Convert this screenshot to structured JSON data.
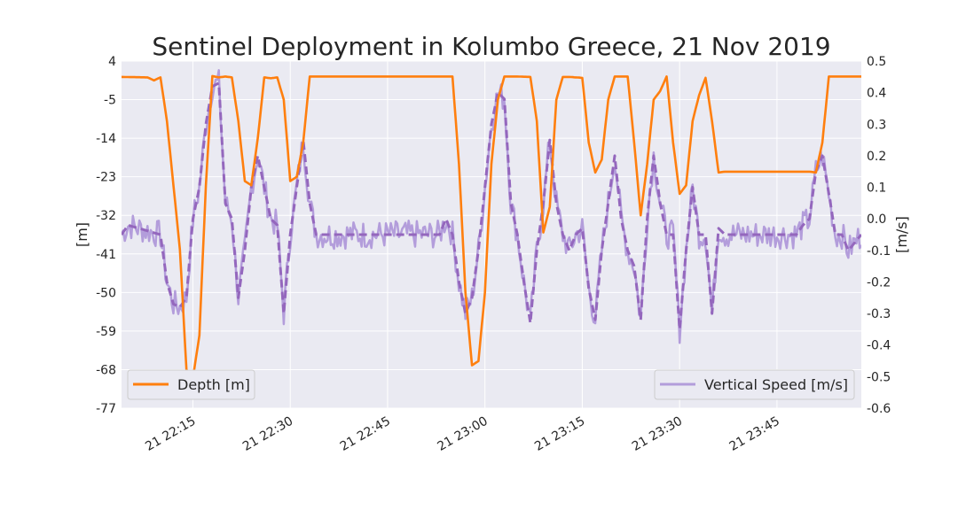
{
  "chart_data": {
    "type": "line",
    "title": "Sentinel Deployment in Kolumbo Greece, 21 Nov 2019",
    "grid": true,
    "x_ticks": [
      "21 22:15",
      "21 22:30",
      "21 22:45",
      "21 23:00",
      "21 23:15",
      "21 23:30",
      "21 23:45"
    ],
    "x_range": [
      "2019-11-21 22:04",
      "2019-11-21 23:58"
    ],
    "left_axis": {
      "label": "[m]",
      "ylim": [
        -77,
        4
      ],
      "ticks": [
        "4",
        "-5",
        "-14",
        "-23",
        "-32",
        "-41",
        "-50",
        "-59",
        "-68",
        "-77"
      ]
    },
    "right_axis": {
      "label": "[m/s]",
      "ylim": [
        -0.6,
        0.5
      ],
      "ticks": [
        "0.5",
        "0.4",
        "0.3",
        "0.2",
        "0.1",
        "0.0",
        "-0.1",
        "-0.2",
        "-0.3",
        "-0.4",
        "-0.5",
        "-0.6"
      ]
    },
    "series": [
      {
        "name": "Depth [m]",
        "axis": "left",
        "color": "#ff7f0e",
        "style": "solid",
        "x": [
          "22:04",
          "22:08",
          "22:09",
          "22:10",
          "22:11",
          "22:13",
          "22:14",
          "22:15",
          "22:16",
          "22:17",
          "22:18",
          "22:19",
          "22:20",
          "22:21",
          "22:22",
          "22:23",
          "22:24",
          "22:25",
          "22:26",
          "22:27",
          "22:28",
          "22:29",
          "22:30",
          "22:31",
          "22:32",
          "22:33",
          "22:35",
          "22:44",
          "22:50",
          "22:55",
          "22:56",
          "22:57",
          "22:58",
          "22:59",
          "23:00",
          "23:01",
          "23:02",
          "23:03",
          "23:05",
          "23:07",
          "23:08",
          "23:09",
          "23:10",
          "23:11",
          "23:12",
          "23:13",
          "23:15",
          "23:16",
          "23:17",
          "23:18",
          "23:19",
          "23:20",
          "23:21",
          "23:22",
          "23:23",
          "23:24",
          "23:25",
          "23:26",
          "23:27",
          "23:28",
          "23:29",
          "23:30",
          "23:31",
          "23:32",
          "23:33",
          "23:34",
          "23:35",
          "23:36",
          "23:37",
          "23:50",
          "23:51",
          "23:52",
          "23:53",
          "23:58"
        ],
        "y": [
          0.3,
          0.2,
          -0.5,
          0.2,
          -10,
          -40,
          -68,
          -70,
          -60,
          -25,
          0.5,
          0.2,
          0.4,
          0.2,
          -10,
          -24,
          -25,
          -14,
          0.2,
          0,
          0.2,
          -5,
          -24,
          -23,
          -15,
          0.4,
          0.4,
          0.4,
          0.4,
          0.4,
          -20,
          -50,
          -67,
          -66,
          -50,
          -20,
          -5,
          0.4,
          0.4,
          0.3,
          -10,
          -36,
          -30,
          -5,
          0.3,
          0.3,
          0.1,
          -15,
          -22,
          -19,
          -5,
          0.4,
          0.4,
          0.4,
          -15,
          -32,
          -20,
          -5,
          -3,
          0.4,
          -15,
          -27,
          -25,
          -10,
          -4,
          0.1,
          -10,
          -22,
          -21.8,
          -21.8,
          -22,
          -15,
          0.4,
          0.4
        ]
      },
      {
        "name": "Vertical Speed [m/s]",
        "axis": "right",
        "color": "#9467bd",
        "style": "noisy",
        "x": [
          "22:04",
          "22:05",
          "22:10",
          "22:11",
          "22:12",
          "22:13",
          "22:14",
          "22:15",
          "22:16",
          "22:17",
          "22:18",
          "22:19",
          "22:20",
          "22:21",
          "22:22",
          "22:23",
          "22:24",
          "22:25",
          "22:26",
          "22:27",
          "22:28",
          "22:29",
          "22:30",
          "22:31",
          "22:32",
          "22:33",
          "22:34",
          "22:36",
          "22:45",
          "22:50",
          "22:52",
          "22:53",
          "22:54",
          "22:55",
          "22:56",
          "22:57",
          "22:58",
          "22:59",
          "23:00",
          "23:01",
          "23:02",
          "23:03",
          "23:04",
          "23:05",
          "23:06",
          "23:07",
          "23:08",
          "23:09",
          "23:10",
          "23:11",
          "23:12",
          "23:13",
          "23:14",
          "23:15",
          "23:16",
          "23:17",
          "23:18",
          "23:19",
          "23:20",
          "23:21",
          "23:22",
          "23:23",
          "23:24",
          "23:25",
          "23:26",
          "23:27",
          "23:28",
          "23:29",
          "23:30",
          "23:31",
          "23:32",
          "23:33",
          "23:34",
          "23:35",
          "23:36",
          "23:37",
          "23:40",
          "23:45",
          "23:48",
          "23:49",
          "23:50",
          "23:51",
          "23:52",
          "23:53",
          "23:54",
          "23:55",
          "23:56",
          "23:58"
        ],
        "y": [
          -0.05,
          -0.02,
          -0.05,
          -0.2,
          -0.27,
          -0.28,
          -0.25,
          0,
          0.1,
          0.3,
          0.42,
          0.43,
          0.05,
          0,
          -0.25,
          -0.1,
          0.1,
          0.2,
          0.1,
          0,
          -0.02,
          -0.3,
          -0.05,
          0.1,
          0.25,
          0.05,
          -0.05,
          -0.05,
          -0.05,
          -0.05,
          -0.05,
          -0.05,
          0,
          -0.05,
          -0.2,
          -0.3,
          -0.25,
          -0.1,
          0.1,
          0.3,
          0.4,
          0.38,
          0.05,
          -0.05,
          -0.2,
          -0.33,
          -0.1,
          0.05,
          0.25,
          0.05,
          -0.05,
          -0.1,
          -0.05,
          -0.03,
          -0.22,
          -0.32,
          -0.1,
          0.05,
          0.2,
          0,
          -0.1,
          -0.15,
          -0.32,
          0,
          0.2,
          0.05,
          -0.05,
          -0.05,
          -0.35,
          -0.1,
          0.1,
          -0.05,
          -0.05,
          -0.3,
          -0.03,
          -0.05,
          -0.05,
          -0.05,
          -0.05,
          -0.02,
          0,
          0.15,
          0.2,
          0.08,
          -0.05,
          -0.05,
          -0.1,
          -0.05
        ]
      }
    ],
    "legend_left": "Depth [m]",
    "legend_right": "Vertical Speed [m/s]"
  }
}
